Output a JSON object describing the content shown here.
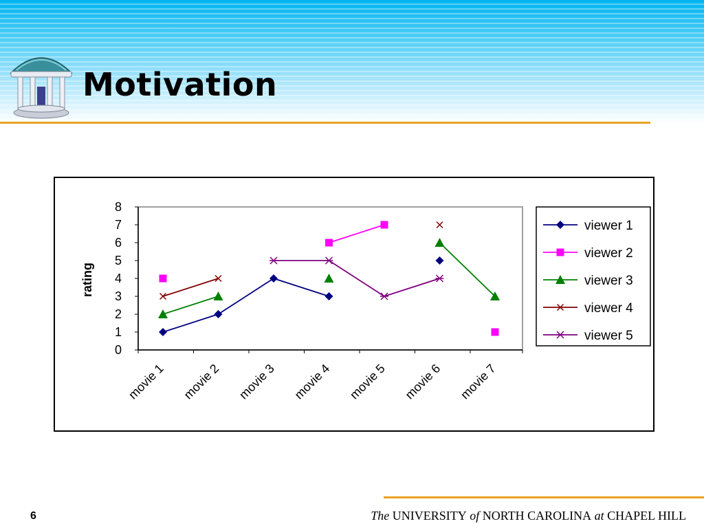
{
  "slide": {
    "title": "Motivation",
    "page_number": "6",
    "footer": {
      "the": "The",
      "university": "UNIVERSITY",
      "of": "of",
      "north_carolina": "NORTH CAROLINA",
      "at": "at",
      "chapel_hill": "CHAPEL HILL"
    }
  },
  "colors": {
    "banner": "#00b4f0",
    "accent_rule": "#e8a323"
  },
  "logo_icon": "old-well-icon",
  "chart_data": {
    "type": "line",
    "title": "",
    "xlabel": "",
    "ylabel": "rating",
    "ylim": [
      0,
      8
    ],
    "yticks": [
      0,
      1,
      2,
      3,
      4,
      5,
      6,
      7,
      8
    ],
    "categories": [
      "movie 1",
      "movie 2",
      "movie 3",
      "movie 4",
      "movie 5",
      "movie 6",
      "movie 7"
    ],
    "legend_position": "right",
    "grid": false,
    "series": [
      {
        "name": "viewer 1",
        "color": "#000080",
        "marker": "diamond",
        "values": [
          1,
          2,
          4,
          3,
          null,
          5,
          null
        ]
      },
      {
        "name": "viewer 2",
        "color": "#ff00ff",
        "marker": "square",
        "values": [
          4,
          null,
          null,
          6,
          7,
          null,
          1
        ]
      },
      {
        "name": "viewer 3",
        "color": "#008000",
        "marker": "triangle",
        "values": [
          2,
          3,
          null,
          4,
          null,
          6,
          3
        ]
      },
      {
        "name": "viewer 4",
        "color": "#800000",
        "marker": "x",
        "values": [
          3,
          4,
          null,
          null,
          null,
          7,
          null
        ]
      },
      {
        "name": "viewer 5",
        "color": "#800080",
        "marker": "star",
        "values": [
          null,
          null,
          5,
          5,
          3,
          4,
          null
        ]
      }
    ]
  }
}
